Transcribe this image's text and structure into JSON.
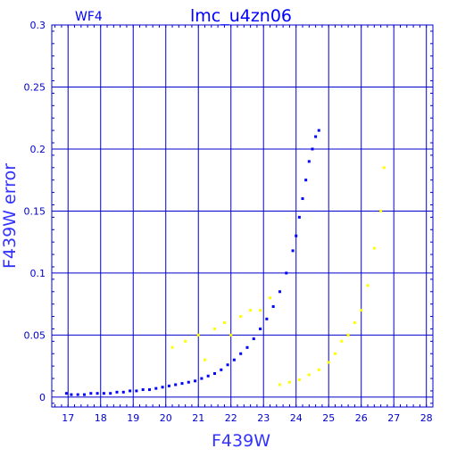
{
  "chart_data": {
    "type": "scatter",
    "title": "lmc_u4zn06",
    "panel_label": "WF4",
    "xlabel": "F439W",
    "ylabel": "F439W error",
    "xlim": [
      16.5,
      28.2
    ],
    "ylim": [
      -0.008,
      0.3
    ],
    "x_ticks": [
      "17",
      "18",
      "19",
      "20",
      "21",
      "22",
      "23",
      "24",
      "25",
      "26",
      "27",
      "28"
    ],
    "y_ticks": [
      "0",
      "0.05",
      "0.1",
      "0.15",
      "0.2",
      "0.25",
      "0.3"
    ],
    "grid": true,
    "colors": {
      "axis": "#0000cc",
      "grid": "#0000cc",
      "main": "#0000ff",
      "secondary": "#ffff00"
    },
    "series": [
      {
        "color": "#0000ff",
        "x": [
          16.95,
          17.1,
          17.3,
          17.5,
          17.7,
          17.9,
          18.1,
          18.3,
          18.5,
          18.7,
          18.9,
          19.1,
          19.3,
          19.5,
          19.7,
          19.9,
          20.1,
          20.3,
          20.5,
          20.7,
          20.9,
          21.1,
          21.3,
          21.5,
          21.7,
          21.9,
          22.1,
          22.3,
          22.5,
          22.7,
          22.9,
          23.1,
          23.3,
          23.5,
          23.7,
          23.9,
          24.0,
          24.1,
          24.2,
          24.3,
          24.4,
          24.5,
          24.6,
          24.7
        ],
        "y": [
          0.003,
          0.002,
          0.002,
          0.002,
          0.003,
          0.003,
          0.003,
          0.003,
          0.004,
          0.004,
          0.005,
          0.005,
          0.006,
          0.006,
          0.007,
          0.008,
          0.009,
          0.01,
          0.011,
          0.012,
          0.013,
          0.015,
          0.017,
          0.019,
          0.022,
          0.026,
          0.03,
          0.035,
          0.04,
          0.047,
          0.055,
          0.063,
          0.073,
          0.085,
          0.1,
          0.118,
          0.13,
          0.145,
          0.16,
          0.175,
          0.19,
          0.2,
          0.21,
          0.215
        ]
      },
      {
        "color": "#ffff00",
        "x": [
          20.2,
          20.6,
          21.0,
          21.2,
          21.5,
          21.8,
          22.0,
          22.3,
          22.6,
          22.9,
          23.2,
          23.5,
          23.8,
          24.1,
          24.4,
          24.7,
          25.0,
          25.2,
          25.4,
          25.6,
          25.8,
          26.0,
          26.2,
          26.4,
          26.6,
          26.7
        ],
        "y": [
          0.04,
          0.045,
          0.05,
          0.03,
          0.055,
          0.06,
          0.05,
          0.065,
          0.07,
          0.07,
          0.08,
          0.01,
          0.012,
          0.014,
          0.018,
          0.022,
          0.028,
          0.035,
          0.045,
          0.05,
          0.06,
          0.07,
          0.09,
          0.12,
          0.15,
          0.185
        ]
      }
    ]
  }
}
